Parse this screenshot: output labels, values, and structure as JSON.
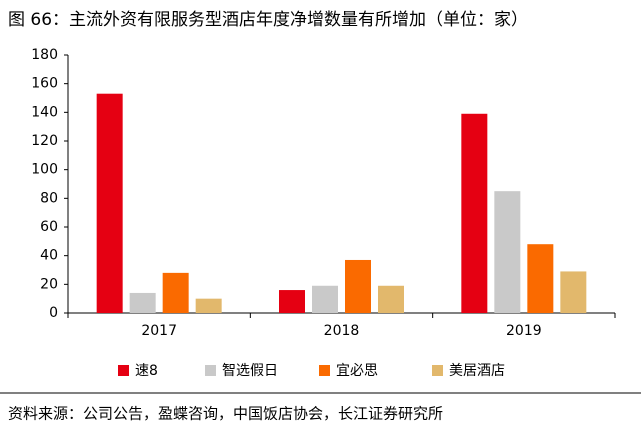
{
  "chart_data": {
    "type": "bar",
    "title": "图 66：主流外资有限服务型酒店年度净增数量有所增加（单位：家）",
    "source": "资料来源：公司公告，盈蝶咨询，中国饭店协会，长江证券研究所",
    "categories": [
      "2017",
      "2018",
      "2019"
    ],
    "series": [
      {
        "name": "速8",
        "color": "#e50012",
        "values": [
          153,
          16,
          139
        ]
      },
      {
        "name": "智选假日",
        "color": "#c9c9c9",
        "values": [
          14,
          19,
          85
        ]
      },
      {
        "name": "宜必思",
        "color": "#fa6a00",
        "values": [
          28,
          37,
          48
        ]
      },
      {
        "name": "美居酒店",
        "color": "#e2b86c",
        "values": [
          10,
          19,
          29
        ]
      }
    ],
    "ylim": [
      0,
      180
    ],
    "yticks": [
      0,
      20,
      40,
      60,
      80,
      100,
      120,
      140,
      160,
      180
    ],
    "grid": false
  }
}
